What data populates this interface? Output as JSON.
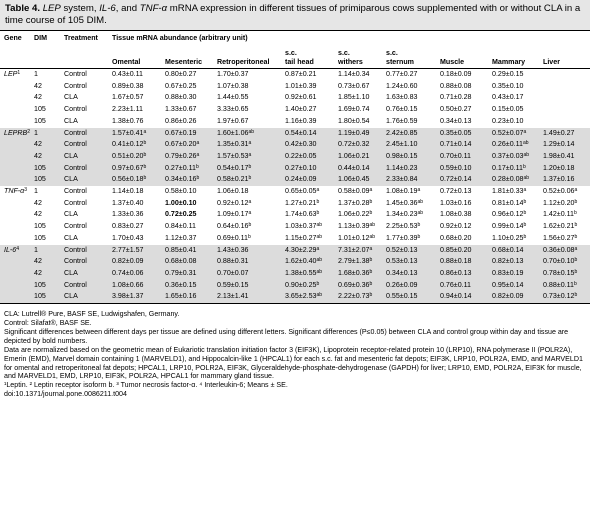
{
  "title": {
    "label": "Table 4.",
    "text_parts": [
      "",
      "LEP",
      " system, ",
      "IL-6",
      ", and ",
      "TNF-α",
      " mRNA expression in different tissues of primiparous cows supplemented with or without CLA in a time course of 105 DIM."
    ]
  },
  "headers": {
    "gene": "Gene",
    "dim": "DIM",
    "treatment": "Treatment",
    "abundance": "Tissue mRNA abundance (arbitrary unit)",
    "columns": [
      "Omental",
      "Mesenteric",
      "Retroperitoneal",
      "s.c.\ntail head",
      "s.c.\nwithers",
      "s.c.\nsternum",
      "Muscle",
      "Mammary",
      "Liver"
    ]
  },
  "groups": [
    {
      "gene": "LEP",
      "sup": "1",
      "shade": false,
      "rows": [
        {
          "dim": "1",
          "trt": "Control",
          "cells": [
            "0.43±0.11",
            "0.80±0.27",
            "1.70±0.37",
            "0.87±0.21",
            "1.14±0.34",
            "0.77±0.27",
            "0.18±0.09",
            "0.29±0.15",
            ""
          ]
        },
        {
          "dim": "42",
          "trt": "Control",
          "cells": [
            "0.89±0.38",
            "0.67±0.25",
            "1.07±0.38",
            "1.01±0.39",
            "0.73±0.67",
            "1.24±0.60",
            "0.88±0.08",
            "0.35±0.10",
            ""
          ]
        },
        {
          "dim": "42",
          "trt": "CLA",
          "cells": [
            "1.67±0.57",
            "0.88±0.30",
            "1.44±0.55",
            "0.92±0.61",
            "1.85±1.10",
            "1.63±0.83",
            "0.71±0.28",
            "0.43±0.17",
            ""
          ]
        },
        {
          "dim": "105",
          "trt": "Control",
          "cells": [
            "2.23±1.11",
            "1.33±0.67",
            "3.33±0.65",
            "1.40±0.27",
            "1.69±0.74",
            "0.76±0.15",
            "0.50±0.27",
            "0.15±0.05",
            ""
          ]
        },
        {
          "dim": "105",
          "trt": "CLA",
          "cells": [
            "1.38±0.76",
            "0.86±0.26",
            "1.97±0.67",
            "1.16±0.39",
            "1.80±0.54",
            "1.76±0.59",
            "0.34±0.13",
            "0.23±0.10",
            ""
          ]
        }
      ]
    },
    {
      "gene": "LEPRB",
      "sup": "2",
      "shade": true,
      "rows": [
        {
          "dim": "1",
          "trt": "Control",
          "cells": [
            "1.57±0.41ᵃ",
            "0.67±0.19",
            "1.60±1.06ᵃᵇ",
            "0.54±0.14",
            "1.19±0.49",
            "2.42±0.85",
            "0.35±0.05",
            "0.52±0.07ᵃ",
            "1.49±0.27"
          ]
        },
        {
          "dim": "42",
          "trt": "Control",
          "cells": [
            "0.41±0.12ᵇ",
            "0.67±0.20ᵃ",
            "1.35±0.31ᵃ",
            "0.42±0.30",
            "0.72±0.32",
            "2.45±1.10",
            "0.71±0.14",
            "0.26±0.11ᵃᵇ",
            "1.29±0.14"
          ]
        },
        {
          "dim": "42",
          "trt": "CLA",
          "cells": [
            "0.51±0.20ᵇ",
            "0.79±0.26ᵃ",
            "1.57±0.53ᵃ",
            "0.22±0.05",
            "1.06±0.21",
            "0.98±0.15",
            "0.70±0.11",
            "0.37±0.03ᵃᵇ",
            "1.98±0.41"
          ]
        },
        {
          "dim": "105",
          "trt": "Control",
          "cells": [
            "0.97±0.67ᵇ",
            "0.27±0.11ᵇ",
            "0.54±0.17ᵇ",
            "0.27±0.10",
            "0.44±0.14",
            "1.14±0.23",
            "0.59±0.10",
            "0.17±0.11ᵇ",
            "1.20±0.18"
          ]
        },
        {
          "dim": "105",
          "trt": "CLA",
          "cells": [
            "0.56±0.18ᵇ",
            "0.34±0.16ᵇ",
            "0.58±0.21ᵇ",
            "0.24±0.09",
            "1.06±0.45",
            "2.33±0.84",
            "0.72±0.14",
            "0.28±0.08ᵃᵇ",
            "1.37±0.16"
          ]
        }
      ]
    },
    {
      "gene": "TNF-α",
      "sup": "3",
      "shade": false,
      "rows": [
        {
          "dim": "1",
          "trt": "Control",
          "cells": [
            "1.14±0.18",
            "0.58±0.10",
            "1.06±0.18",
            "0.65±0.05ᵃ",
            "0.58±0.09ᵃ",
            "1.08±0.19ᵃ",
            "0.72±0.13",
            "1.81±0.33ᵃ",
            "0.52±0.06ᵃ"
          ]
        },
        {
          "dim": "42",
          "trt": "Control",
          "cells": [
            "1.37±0.40",
            "1.00±0.10",
            "0.92±0.12ᵃ",
            "1.27±0.21ᵇ",
            "1.37±0.28ᵇ",
            "1.45±0.36ᵃᵇ",
            "1.03±0.16",
            "0.81±0.14ᵇ",
            "1.12±0.20ᵇ"
          ],
          "bold": [
            1
          ]
        },
        {
          "dim": "42",
          "trt": "CLA",
          "cells": [
            "1.33±0.36",
            "0.72±0.25",
            "1.09±0.17ᵃ",
            "1.74±0.63ᵇ",
            "1.06±0.22ᵇ",
            "1.34±0.23ᵃᵇ",
            "1.08±0.38",
            "0.96±0.12ᵇ",
            "1.42±0.11ᵇ"
          ],
          "bold": [
            1
          ]
        },
        {
          "dim": "105",
          "trt": "Control",
          "cells": [
            "0.83±0.27",
            "0.84±0.11",
            "0.64±0.16ᵇ",
            "1.03±0.37ᵃᵇ",
            "1.13±0.39ᵃᵇ",
            "2.25±0.53ᵇ",
            "0.92±0.12",
            "0.99±0.14ᵇ",
            "1.62±0.21ᵇ"
          ]
        },
        {
          "dim": "105",
          "trt": "CLA",
          "cells": [
            "1.70±0.43",
            "1.12±0.37",
            "0.69±0.11ᵇ",
            "1.15±0.27ᵃᵇ",
            "1.01±0.12ᵃᵇ",
            "1.77±0.39ᵇ",
            "0.68±0.20",
            "1.10±0.25ᵇ",
            "1.56±0.27ᵇ"
          ]
        }
      ]
    },
    {
      "gene": "IL-6",
      "sup": "4",
      "shade": true,
      "rows": [
        {
          "dim": "1",
          "trt": "Control",
          "cells": [
            "2.77±1.57",
            "0.85±0.41",
            "1.43±0.36",
            "4.30±2.29ᵃ",
            "7.31±2.07ᵃ",
            "0.52±0.13",
            "0.85±0.20",
            "0.68±0.14",
            "0.36±0.08ᵃ"
          ]
        },
        {
          "dim": "42",
          "trt": "Control",
          "cells": [
            "0.82±0.09",
            "0.68±0.08",
            "0.88±0.31",
            "1.62±0.40ᵃᵇ",
            "2.79±1.38ᵇ",
            "0.53±0.13",
            "0.88±0.18",
            "0.82±0.13",
            "0.70±0.10ᵇ"
          ]
        },
        {
          "dim": "42",
          "trt": "CLA",
          "cells": [
            "0.74±0.06",
            "0.79±0.31",
            "0.70±0.07",
            "1.38±0.55ᵃᵇ",
            "1.68±0.36ᵇ",
            "0.34±0.13",
            "0.86±0.13",
            "0.83±0.19",
            "0.78±0.15ᵇ"
          ]
        },
        {
          "dim": "105",
          "trt": "Control",
          "cells": [
            "1.08±0.66",
            "0.36±0.15",
            "0.59±0.15",
            "0.90±0.25ᵇ",
            "0.69±0.36ᵇ",
            "0.26±0.09",
            "0.76±0.11",
            "0.95±0.14",
            "0.88±0.11ᵇ"
          ]
        },
        {
          "dim": "105",
          "trt": "CLA",
          "cells": [
            "3.98±1.37",
            "1.65±0.16",
            "2.13±1.41",
            "3.65±2.53ᵃᵇ",
            "2.22±0.73ᵇ",
            "0.55±0.15",
            "0.94±0.14",
            "0.82±0.09",
            "0.73±0.12ᵇ"
          ]
        }
      ]
    }
  ],
  "footnotes": [
    "CLA: Lutrell® Pure, BASF SE, Ludwigshafen, Germany.",
    "Control: Silafat®, BASF SE.",
    "Significant differences between different days per tissue are defined using different letters. Significant differences (P≤0.05) between CLA and control group within day and tissue are depicted by bold numbers.",
    "Data are normalized based on the geometric mean of Eukariotic translation initiation factor 3 (EIF3K), Lipoprotein receptor-related protein 10 (LRP10), RNA polymerase II (POLR2A), Emerin (EMD), Marvel domain containing 1 (MARVELD1), and Hippocalcin-like 1 (HPCAL1) for each s.c. fat and mesenteric fat depots; EIF3K, LRP10, POLR2A, EMD, and MARVELD1 for omental and retroperitoneal fat depots; HPCAL1, LRP10, POLR2A, EIF3K, Glyceraldehyde-phosphate-dehydrogenase (GAPDH) for liver; LRP10, EMD, POLR2A, EIF3K for muscle, and MARVELD1, EMD, LRP10, EIF3K, POLR2A, HPCAL1 for mammary gland tissue.",
    "¹Leptin. ² Leptin receptor isoform b. ³ Tumor necrosis factor-α. ⁴ Interleukin-6; Means ± SE.",
    "doi:10.1371/journal.pone.0086211.t004"
  ]
}
